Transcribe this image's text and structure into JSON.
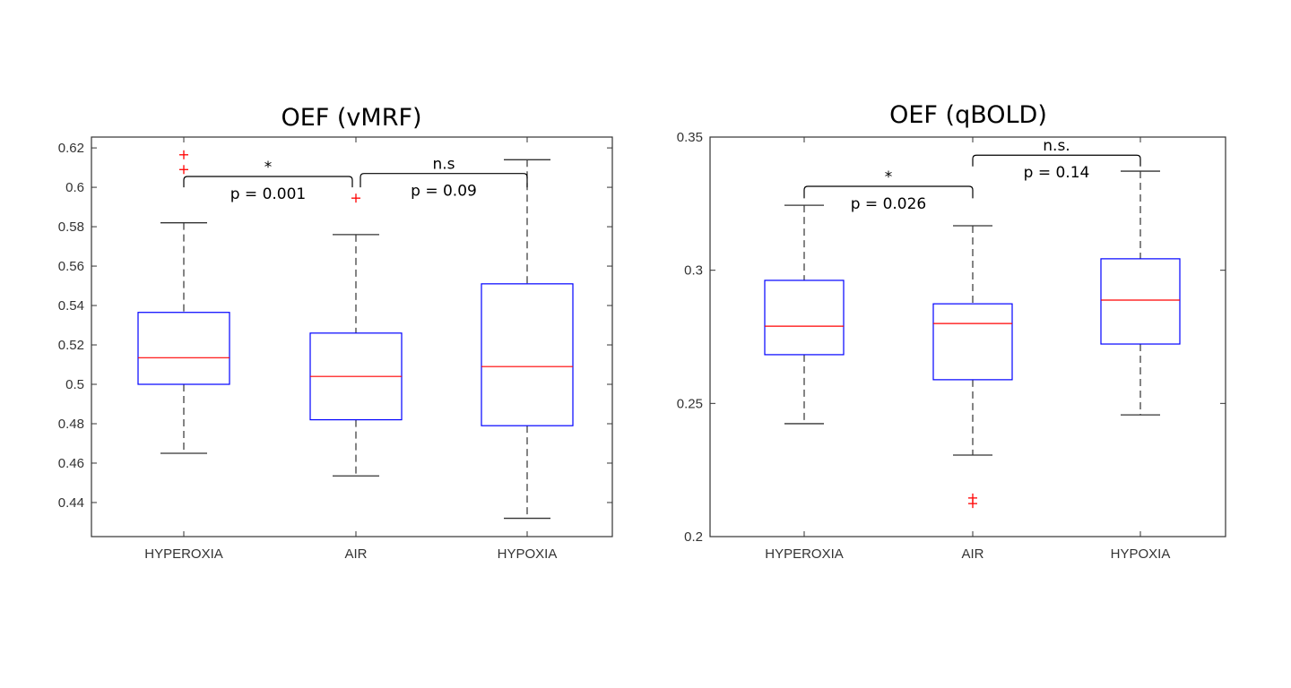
{
  "chart_data": [
    {
      "type": "box",
      "title": "OEF (vMRF)",
      "xlabel": "",
      "ylabel": "",
      "categories": [
        "HYPEROXIA",
        "AIR",
        "HYPOXIA"
      ],
      "ylim": [
        0.4227,
        0.6255
      ],
      "yticks": [
        0.44,
        0.46,
        0.48,
        0.5,
        0.52,
        0.54,
        0.56,
        0.58,
        0.6,
        0.62
      ],
      "ytick_labels": [
        "0.44",
        "0.46",
        "0.48",
        "0.5",
        "0.52",
        "0.54",
        "0.56",
        "0.58",
        "0.6",
        "0.62"
      ],
      "boxes": [
        {
          "category": "HYPEROXIA",
          "whisker_low": 0.465,
          "q1": 0.5,
          "median": 0.5135,
          "q3": 0.5365,
          "whisker_high": 0.582,
          "outliers": [
            0.609,
            0.6165
          ]
        },
        {
          "category": "AIR",
          "whisker_low": 0.4535,
          "q1": 0.482,
          "median": 0.504,
          "q3": 0.526,
          "whisker_high": 0.576,
          "outliers": [
            0.5945
          ]
        },
        {
          "category": "HYPOXIA",
          "whisker_low": 0.432,
          "q1": 0.479,
          "median": 0.509,
          "q3": 0.551,
          "whisker_high": 0.614,
          "outliers": []
        }
      ],
      "annotations": [
        {
          "from": "HYPEROXIA",
          "to": "AIR",
          "bracket_y": 0.6055,
          "leg_low": 0.6,
          "mark": "*",
          "p_text": "p = 0.001"
        },
        {
          "from": "AIR",
          "to": "HYPOXIA",
          "bracket_y": 0.607,
          "leg_low": 0.6,
          "mark": "n.s",
          "p_text": "p = 0.09"
        }
      ],
      "colors": {
        "box": "#0000ff",
        "median": "#ff0000",
        "whisker": "#000000",
        "outlier": "#ff0000",
        "axis": "#333333"
      }
    },
    {
      "type": "box",
      "title": "OEF (qBOLD)",
      "xlabel": "",
      "ylabel": "",
      "categories": [
        "HYPEROXIA",
        "AIR",
        "HYPOXIA"
      ],
      "ylim": [
        0.2,
        0.35
      ],
      "yticks": [
        0.2,
        0.25,
        0.3,
        0.35
      ],
      "ytick_labels": [
        "0.2",
        "0.25",
        "0.3",
        "0.35"
      ],
      "boxes": [
        {
          "category": "HYPEROXIA",
          "whisker_low": 0.2424,
          "q1": 0.2683,
          "median": 0.279,
          "q3": 0.2962,
          "whisker_high": 0.3244,
          "outliers": []
        },
        {
          "category": "AIR",
          "whisker_low": 0.2306,
          "q1": 0.2589,
          "median": 0.28,
          "q3": 0.2874,
          "whisker_high": 0.3167,
          "outliers": [
            0.2124,
            0.2145
          ]
        },
        {
          "category": "HYPOXIA",
          "whisker_low": 0.2457,
          "q1": 0.2723,
          "median": 0.2888,
          "q3": 0.3043,
          "whisker_high": 0.3372,
          "outliers": []
        }
      ],
      "annotations": [
        {
          "from": "HYPEROXIA",
          "to": "AIR",
          "bracket_y": 0.3315,
          "leg_low": 0.327,
          "mark": "*",
          "p_text": "p = 0.026"
        },
        {
          "from": "AIR",
          "to": "HYPOXIA",
          "bracket_y": 0.3432,
          "leg_low": 0.339,
          "mark": "n.s.",
          "p_text": "p = 0.14"
        }
      ],
      "colors": {
        "box": "#0000ff",
        "median": "#ff0000",
        "whisker": "#000000",
        "outlier": "#ff0000",
        "axis": "#333333"
      }
    }
  ]
}
